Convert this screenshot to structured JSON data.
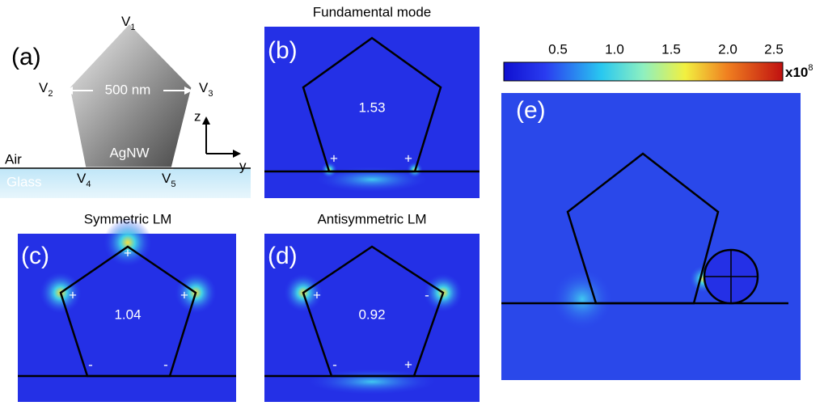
{
  "panel_a": {
    "label": "(a)",
    "vertices": [
      {
        "letter": "V",
        "sub": "1"
      },
      {
        "letter": "V",
        "sub": "2"
      },
      {
        "letter": "V",
        "sub": "3"
      },
      {
        "letter": "V",
        "sub": "4"
      },
      {
        "letter": "V",
        "sub": "5"
      }
    ],
    "width_label": "500 nm",
    "axis_z": "z",
    "axis_y": "y",
    "air": "Air",
    "wire": "AgNW",
    "glass": "Glass"
  },
  "panel_b": {
    "title": "Fundamental mode",
    "label": "(b)",
    "index": "1.53",
    "charges": [
      "+",
      "+"
    ]
  },
  "panel_c": {
    "title": "Symmetric LM",
    "label": "(c)",
    "index": "1.04",
    "charges": [
      "+",
      "+",
      "+",
      "-",
      "-"
    ]
  },
  "panel_d": {
    "title": "Antisymmetric LM",
    "label": "(d)",
    "index": "0.92",
    "charges": [
      "+",
      "-",
      "-",
      "+"
    ]
  },
  "panel_e": {
    "label": "(e)"
  },
  "colorbar": {
    "ticks": [
      "0.5",
      "1.0",
      "1.5",
      "2.0",
      "2.5"
    ],
    "multiplier": "x10",
    "exponent": "8"
  }
}
